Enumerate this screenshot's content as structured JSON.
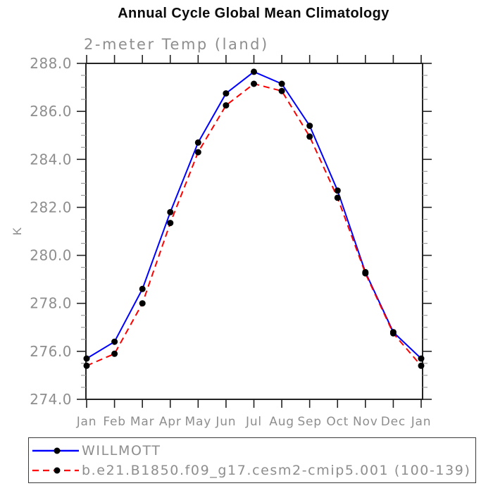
{
  "header": {
    "title": "Annual Cycle Global Mean Climatology",
    "subtitle": "2-meter Temp (land)"
  },
  "chart_data": {
    "type": "line",
    "title": "Annual Cycle Global Mean Climatology",
    "subtitle": "2-meter Temp (land)",
    "xlabel": "",
    "ylabel": "K",
    "categories": [
      "Jan",
      "Feb",
      "Mar",
      "Apr",
      "May",
      "Jun",
      "Jul",
      "Aug",
      "Sep",
      "Oct",
      "Nov",
      "Dec",
      "Jan"
    ],
    "series": [
      {
        "name": "WILLMOTT",
        "color": "#0000ff",
        "line_style": "solid",
        "marker": "filled-circle",
        "marker_color": "#000000",
        "values": [
          275.7,
          276.4,
          278.6,
          281.8,
          284.7,
          286.75,
          287.65,
          287.15,
          285.4,
          282.7,
          279.3,
          276.8,
          275.7
        ]
      },
      {
        "name": "b.e21.B1850.f09_g17.cesm2-cmip5.001 (100-139)",
        "color": "#ff0000",
        "line_style": "dashed",
        "marker": "filled-circle",
        "marker_color": "#000000",
        "values": [
          275.4,
          275.9,
          278.0,
          281.35,
          284.3,
          286.25,
          287.15,
          286.85,
          284.95,
          282.4,
          279.25,
          276.75,
          275.4
        ]
      }
    ],
    "ylim": [
      274.0,
      288.0
    ],
    "ytick_step": 2.0,
    "yminor_step": 0.5,
    "ytick_labels": [
      "274.0",
      "276.0",
      "278.0",
      "280.0",
      "282.0",
      "284.0",
      "286.0",
      "288.0"
    ],
    "grid": false,
    "legend_position": "bottom-left-box",
    "axis_color": "#222222",
    "tick_label_color": "#8e8e8e"
  }
}
